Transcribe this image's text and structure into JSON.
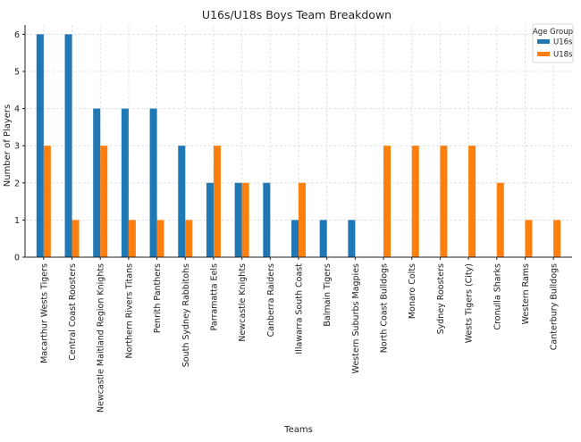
{
  "chart_data": {
    "type": "bar",
    "title": "U16s/U18s Boys Team Breakdown",
    "xlabel": "Teams",
    "ylabel": "Number of Players",
    "ylim": [
      0,
      6.25
    ],
    "yticks": [
      0,
      1,
      2,
      3,
      4,
      5,
      6
    ],
    "grid": true,
    "legend": {
      "title": "Age Group",
      "placement": "top-right"
    },
    "categories": [
      "Macarthur Wests Tigers",
      "Central Coast Roosters",
      "Newcastle Maitland Region Knights",
      "Northern Rivers Titans",
      "Penrith Panthers",
      "South Sydney Rabbitohs",
      "Parramatta Eels",
      "Newcastle Knights",
      "Canberra Raiders",
      "Illawarra South Coast",
      "Balmain Tigers",
      "Western Suburbs Magpies",
      "North Coast Bulldogs",
      "Monaro Colts",
      "Sydney Roosters",
      "Wests Tigers (City)",
      "Cronulla Sharks",
      "Western Rams",
      "Canterbury Bulldogs"
    ],
    "series": [
      {
        "name": "U16s",
        "color": "#1f77b4",
        "values": [
          6,
          6,
          4,
          4,
          4,
          3,
          2,
          2,
          2,
          1,
          1,
          1,
          0,
          0,
          0,
          0,
          0,
          0,
          0
        ]
      },
      {
        "name": "U18s",
        "color": "#ff7f0e",
        "values": [
          3,
          1,
          3,
          1,
          1,
          1,
          3,
          2,
          0,
          2,
          0,
          0,
          3,
          3,
          3,
          3,
          2,
          1,
          1
        ]
      }
    ]
  }
}
